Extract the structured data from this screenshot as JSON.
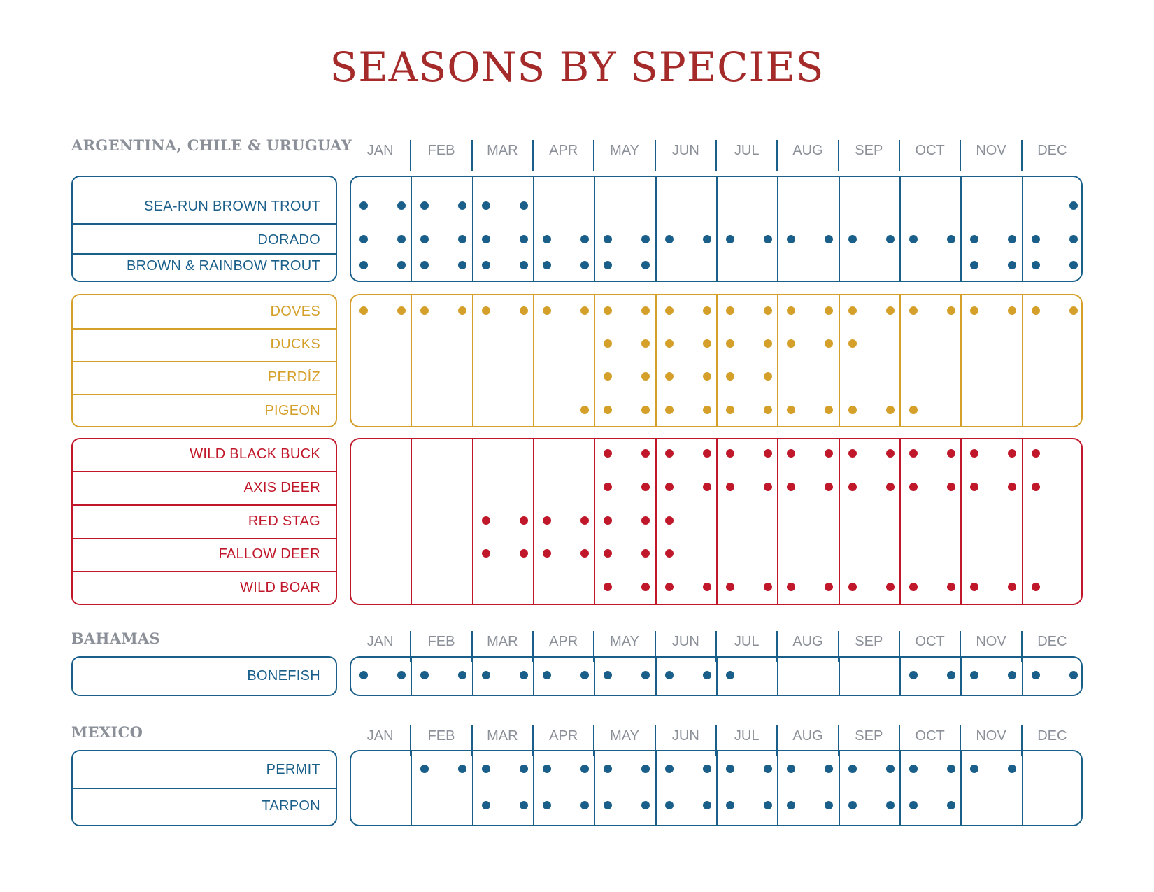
{
  "title": "SEASONS BY SPECIES",
  "colors": {
    "blue": "#1a5f8a",
    "gold": "#d4a02a",
    "red": "#c0182a",
    "gray": "#8a8f98"
  },
  "months": [
    "JAN",
    "FEB",
    "MAR",
    "APR",
    "MAY",
    "JUN",
    "JUL",
    "AUG",
    "SEP",
    "OCT",
    "NOV",
    "DEC"
  ],
  "sections": [
    {
      "region": "ARGENTINA, CHILE & URUGUAY",
      "groups": [
        {
          "color": "blue",
          "species": [
            {
              "name": "SEA-RUN BROWN TROUT",
              "dots": [
                1,
                2,
                3,
                4,
                5,
                6,
                24
              ]
            },
            {
              "name": "DORADO",
              "dots": [
                1,
                2,
                3,
                4,
                5,
                6,
                7,
                8,
                9,
                10,
                11,
                12,
                13,
                14,
                15,
                16,
                17,
                18,
                19,
                20,
                21,
                22,
                23,
                24
              ]
            },
            {
              "name": "BROWN & RAINBOW TROUT",
              "dots": [
                1,
                2,
                3,
                4,
                5,
                6,
                7,
                8,
                9,
                10,
                21,
                22,
                23,
                24
              ]
            }
          ]
        },
        {
          "color": "gold",
          "species": [
            {
              "name": "DOVES",
              "dots": [
                1,
                2,
                3,
                4,
                5,
                6,
                7,
                8,
                9,
                10,
                11,
                12,
                13,
                14,
                15,
                16,
                17,
                18,
                19,
                20,
                21,
                22,
                23,
                24
              ]
            },
            {
              "name": "DUCKS",
              "dots": [
                9,
                10,
                11,
                12,
                13,
                14,
                15,
                16,
                17
              ]
            },
            {
              "name": "PERDÍZ",
              "dots": [
                9,
                10,
                11,
                12,
                13,
                14
              ]
            },
            {
              "name": "PIGEON",
              "dots": [
                8,
                9,
                10,
                11,
                12,
                13,
                14,
                15,
                16,
                17,
                18,
                19
              ]
            }
          ]
        },
        {
          "color": "red",
          "species": [
            {
              "name": "WILD BLACK BUCK",
              "dots": [
                9,
                10,
                11,
                12,
                13,
                14,
                15,
                16,
                17,
                18,
                19,
                20,
                21,
                22,
                23
              ]
            },
            {
              "name": "AXIS DEER",
              "dots": [
                9,
                10,
                11,
                12,
                13,
                14,
                15,
                16,
                17,
                18,
                19,
                20,
                21,
                22,
                23
              ]
            },
            {
              "name": "RED STAG",
              "dots": [
                5,
                6,
                7,
                8,
                9,
                10,
                11
              ]
            },
            {
              "name": "FALLOW DEER",
              "dots": [
                5,
                6,
                7,
                8,
                9,
                10,
                11
              ]
            },
            {
              "name": "WILD BOAR",
              "dots": [
                9,
                10,
                11,
                12,
                13,
                14,
                15,
                16,
                17,
                18,
                19,
                20,
                21,
                22,
                23
              ]
            }
          ]
        }
      ]
    },
    {
      "region": "BAHAMAS",
      "groups": [
        {
          "color": "blue",
          "species": [
            {
              "name": "BONEFISH",
              "dots": [
                1,
                2,
                3,
                4,
                5,
                6,
                7,
                8,
                9,
                10,
                11,
                12,
                13,
                19,
                20,
                21,
                22,
                23,
                24
              ]
            }
          ]
        }
      ]
    },
    {
      "region": "MEXICO",
      "groups": [
        {
          "color": "blue",
          "species": [
            {
              "name": "PERMIT",
              "dots": [
                3,
                4,
                5,
                6,
                7,
                8,
                9,
                10,
                11,
                12,
                13,
                14,
                15,
                16,
                17,
                18,
                19,
                20,
                21,
                22
              ]
            },
            {
              "name": "TARPON",
              "dots": [
                5,
                6,
                7,
                8,
                9,
                10,
                11,
                12,
                13,
                14,
                15,
                16,
                17,
                18,
                19,
                20
              ]
            }
          ]
        }
      ]
    }
  ]
}
